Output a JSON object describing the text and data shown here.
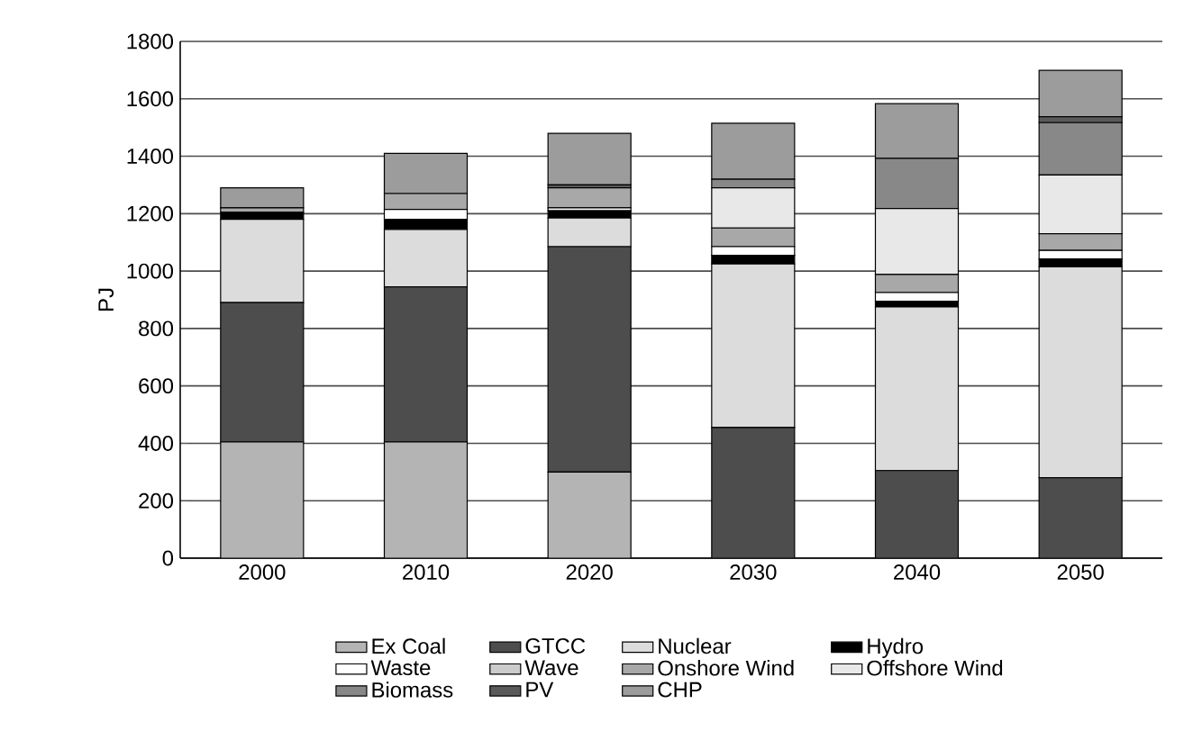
{
  "chart_data": {
    "type": "bar",
    "stacked": true,
    "ylabel": "PJ",
    "categories": [
      "2000",
      "2010",
      "2020",
      "2030",
      "2040",
      "2050"
    ],
    "ylim": [
      0,
      1800
    ],
    "yticks": [
      0,
      200,
      400,
      600,
      800,
      1000,
      1200,
      1400,
      1600,
      1800
    ],
    "grid": "y",
    "legend": "bottom",
    "series": [
      {
        "name": "Ex Coal",
        "color": "#b4b4b4",
        "values": [
          405,
          405,
          300,
          null,
          null,
          null
        ]
      },
      {
        "name": "GTCC",
        "color": "#4d4d4d",
        "values": [
          485,
          540,
          785,
          455,
          305,
          280
        ]
      },
      {
        "name": "Nuclear",
        "color": "#dcdcdc",
        "values": [
          290,
          200,
          100,
          570,
          570,
          735
        ]
      },
      {
        "name": "Hydro",
        "color": "#000000",
        "values": [
          25,
          35,
          25,
          30,
          20,
          27
        ]
      },
      {
        "name": "Waste",
        "color": "#ffffff",
        "values": [
          null,
          35,
          10,
          30,
          30,
          30
        ]
      },
      {
        "name": "Wave",
        "color": "#cccccc",
        "values": [
          null,
          null,
          null,
          null,
          null,
          null
        ]
      },
      {
        "name": "Onshore Wind",
        "color": "#a8a8a8",
        "values": [
          15,
          55,
          70,
          65,
          63,
          58
        ]
      },
      {
        "name": "Offshore Wind",
        "color": "#e8e8e8",
        "values": [
          null,
          null,
          null,
          140,
          230,
          205
        ]
      },
      {
        "name": "Biomass",
        "color": "#888888",
        "values": [
          null,
          null,
          null,
          30,
          175,
          182
        ]
      },
      {
        "name": "PV",
        "color": "#5a5a5a",
        "values": [
          null,
          null,
          10,
          null,
          null,
          21
        ]
      },
      {
        "name": "CHP",
        "color": "#9c9c9c",
        "values": [
          70,
          140,
          180,
          195,
          190,
          161
        ]
      }
    ]
  }
}
